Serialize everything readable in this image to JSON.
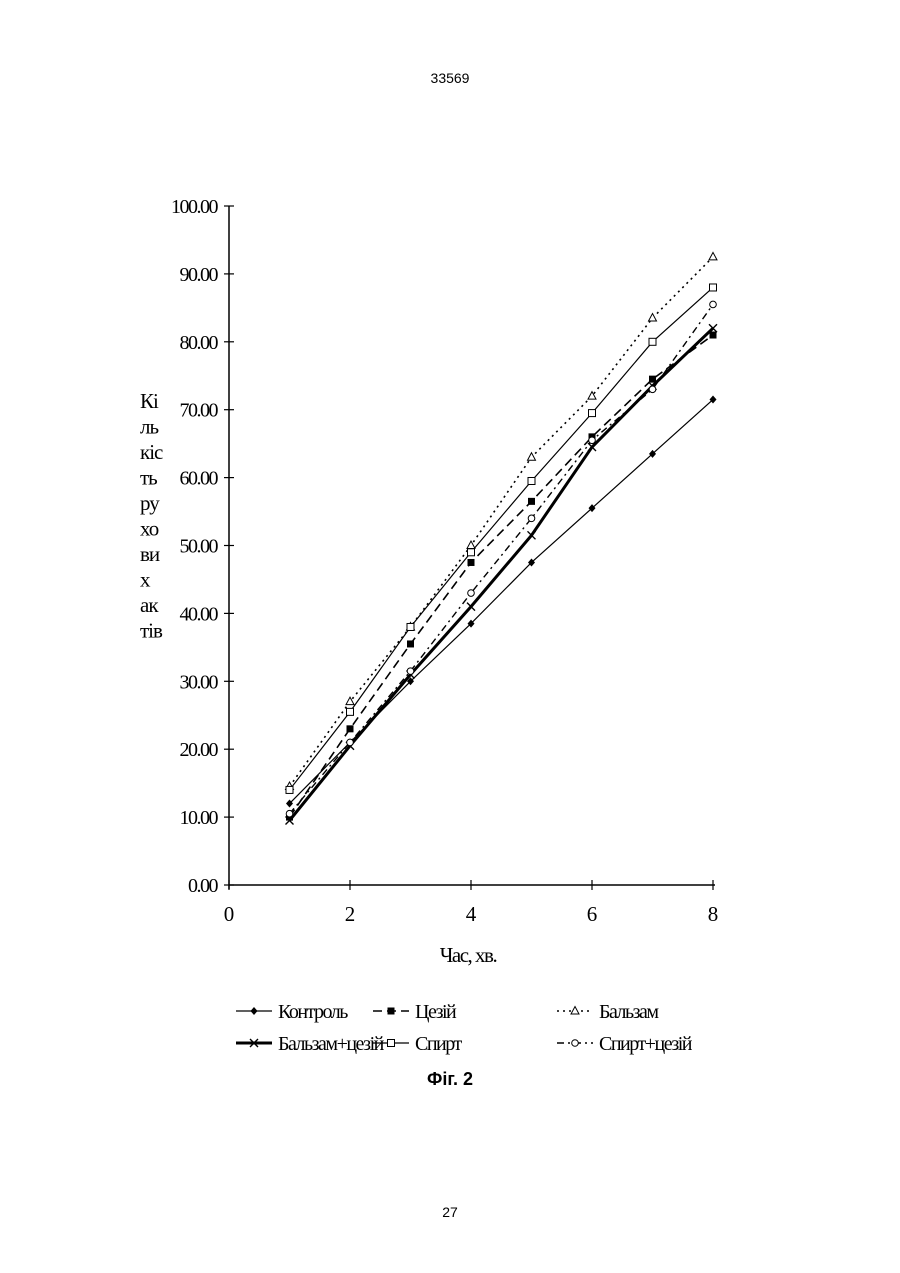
{
  "page": {
    "number_top": "33569",
    "number_bottom": "27",
    "figure_caption": "Фіг. 2"
  },
  "chart_data": {
    "type": "line",
    "title": "",
    "xlabel": "Час, хв.",
    "ylabel_lines": [
      "Кі",
      "ль",
      "кіс",
      "ть",
      "ру",
      "хо",
      "ви",
      "х",
      "ак",
      "тів"
    ],
    "xlim": [
      0,
      8
    ],
    "ylim": [
      0,
      100
    ],
    "x_ticks": [
      0,
      2,
      4,
      6,
      8
    ],
    "x_tick_labels": [
      "0",
      "2",
      "4",
      "6",
      "8"
    ],
    "y_ticks": [
      0,
      10,
      20,
      30,
      40,
      50,
      60,
      70,
      80,
      90,
      100
    ],
    "y_tick_labels": [
      "0.00",
      "10.00",
      "20.00",
      "30.00",
      "40.00",
      "50.00",
      "60.00",
      "70.00",
      "80.00",
      "90.00",
      "100.00"
    ],
    "grid": false,
    "legend_position": "bottom",
    "x": [
      1,
      2,
      3,
      4,
      5,
      6,
      7,
      8
    ],
    "series": [
      {
        "name": "Контроль",
        "values": [
          12,
          21,
          30,
          38.5,
          47.5,
          55.5,
          63.5,
          71.5
        ],
        "marker": "diamond",
        "dash": "solid",
        "width": 1.2
      },
      {
        "name": "Цезій",
        "values": [
          10,
          23,
          35.5,
          47.5,
          56.5,
          66,
          74.5,
          81
        ],
        "marker": "square-filled",
        "dash": "dashed",
        "width": 1.6
      },
      {
        "name": "Бальзам",
        "values": [
          14.5,
          27,
          38,
          50,
          63,
          72,
          83.5,
          92.5
        ],
        "marker": "triangle-open",
        "dash": "dotted",
        "width": 1.6
      },
      {
        "name": "Бальзам+цезій",
        "values": [
          9.5,
          20.5,
          31,
          41,
          51.5,
          64.5,
          73.5,
          82
        ],
        "marker": "x",
        "dash": "solid",
        "width": 3
      },
      {
        "name": "Спирт",
        "values": [
          14,
          25.5,
          38,
          49,
          59.5,
          69.5,
          80,
          88
        ],
        "marker": "square-open",
        "dash": "solid",
        "width": 1.2
      },
      {
        "name": "Спирт+цезій",
        "values": [
          10.5,
          21,
          31.5,
          43,
          54,
          65.5,
          73,
          85.5
        ],
        "marker": "circle-open",
        "dash": "dashdot",
        "width": 1.4
      }
    ]
  }
}
